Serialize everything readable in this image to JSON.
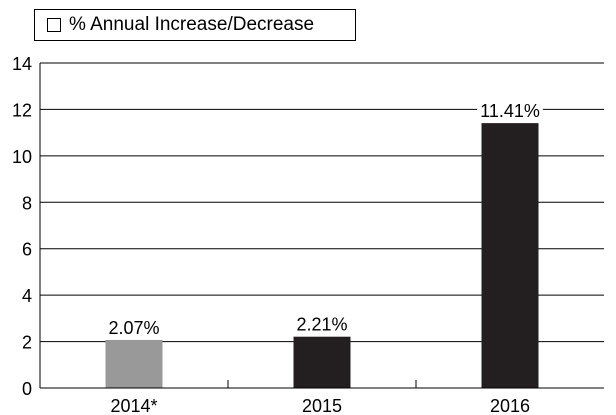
{
  "chart_data": {
    "type": "bar",
    "categories": [
      "2014*",
      "2015",
      "2016"
    ],
    "series": [
      {
        "name": "% Annual Increase/Decrease",
        "values": [
          2.07,
          2.21,
          11.41
        ],
        "data_labels": [
          "2.07%",
          "2.21%",
          "11.41%"
        ],
        "colors": [
          "#999999",
          "#231f20",
          "#231f20"
        ]
      }
    ],
    "legend": {
      "position": "top-left",
      "entries": [
        "% Annual Increase/Decrease"
      ],
      "swatch_color": "#ffffff"
    },
    "ylim": [
      0,
      14
    ],
    "yticks": [
      0,
      2,
      4,
      6,
      8,
      10,
      12,
      14
    ],
    "grid": true,
    "xlabel": "",
    "ylabel": "",
    "title": ""
  }
}
